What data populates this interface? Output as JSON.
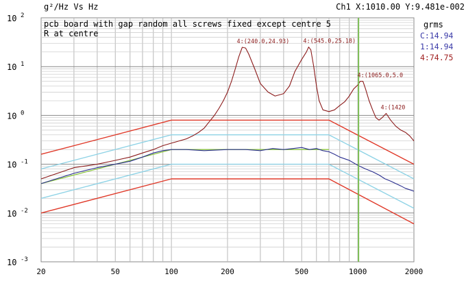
{
  "window": {
    "title": "g²/Hz Vs Hz",
    "cursor_readout": "Ch1 X:1010.00 Y:9.481e-002"
  },
  "annotation": {
    "line1": "pcb board with gap random all screws fixed except centre 5",
    "line2": "R at  centre"
  },
  "legend": {
    "header": "grms",
    "items": [
      {
        "label": "C:14.94",
        "color": "#3a3aa8"
      },
      {
        "label": "1:14.94",
        "color": "#3a3aa8"
      },
      {
        "label": "4:74.75",
        "color": "#a02020"
      }
    ]
  },
  "colors": {
    "response": "#8b1a1a",
    "control": "#2b2f8f",
    "reference": "#8cc63f",
    "abort_limits": "#e03a2a",
    "alarm_limits": "#8fd3e6",
    "cursor": "#6fbf3f",
    "grid": "#b8b8b8"
  },
  "chart_data": {
    "type": "line",
    "x_scale": "log",
    "y_scale": "log",
    "xlim": [
      20,
      2000
    ],
    "ylim": [
      0.001,
      100
    ],
    "x_ticks": [
      20,
      50,
      100,
      200,
      500,
      1000,
      2000
    ],
    "x_tick_labels": [
      "20",
      "50",
      "100",
      "200",
      "500",
      "1000",
      "2000"
    ],
    "y_ticks": [
      {
        "value": 100,
        "base": "10",
        "exp": "2"
      },
      {
        "value": 10,
        "base": "10",
        "exp": "1"
      },
      {
        "value": 1,
        "base": "10",
        "exp": "0"
      },
      {
        "value": 0.1,
        "base": "10",
        "exp": "-1"
      },
      {
        "value": 0.01,
        "base": "10",
        "exp": "-2"
      },
      {
        "value": 0.001,
        "base": "10",
        "exp": "-3"
      }
    ],
    "cursor_x": 1010,
    "peak_labels": [
      {
        "text": "4:(240.0,24.93)",
        "x": 240,
        "y": 24.93
      },
      {
        "text": "4:(545.0,25.18)",
        "x": 545,
        "y": 25.18
      },
      {
        "text": "4:(1065.0,5.0",
        "x": 1065,
        "y": 5.0
      },
      {
        "text": "4:(1420",
        "x": 1420,
        "y": 1.1
      }
    ],
    "series": [
      {
        "key": "abort_high",
        "color_key": "abort_limits",
        "x": [
          20,
          100,
          700,
          2000
        ],
        "y": [
          0.16,
          0.8,
          0.8,
          0.1
        ]
      },
      {
        "key": "abort_low",
        "color_key": "abort_limits",
        "x": [
          20,
          100,
          700,
          2000
        ],
        "y": [
          0.01,
          0.05,
          0.05,
          0.006
        ]
      },
      {
        "key": "alarm_high",
        "color_key": "alarm_limits",
        "x": [
          20,
          100,
          700,
          2000
        ],
        "y": [
          0.08,
          0.4,
          0.4,
          0.05
        ]
      },
      {
        "key": "alarm_low",
        "color_key": "alarm_limits",
        "x": [
          20,
          100,
          700,
          2000
        ],
        "y": [
          0.02,
          0.1,
          0.1,
          0.0125
        ]
      },
      {
        "key": "reference",
        "color_key": "reference",
        "x": [
          20,
          100,
          700
        ],
        "y": [
          0.04,
          0.2,
          0.2
        ]
      },
      {
        "key": "control",
        "color_key": "control",
        "x": [
          20,
          30,
          40,
          50,
          60,
          70,
          80,
          90,
          100,
          120,
          150,
          200,
          250,
          300,
          350,
          400,
          450,
          500,
          550,
          600,
          650,
          700,
          750,
          800,
          900,
          1000,
          1100,
          1200,
          1300,
          1400,
          1500,
          1600,
          1700,
          1800,
          1900,
          2000
        ],
        "y": [
          0.04,
          0.065,
          0.085,
          0.1,
          0.115,
          0.14,
          0.17,
          0.19,
          0.2,
          0.2,
          0.19,
          0.2,
          0.2,
          0.19,
          0.21,
          0.2,
          0.21,
          0.22,
          0.2,
          0.21,
          0.19,
          0.18,
          0.16,
          0.14,
          0.12,
          0.095,
          0.08,
          0.07,
          0.06,
          0.05,
          0.045,
          0.04,
          0.036,
          0.032,
          0.03,
          0.028
        ]
      },
      {
        "key": "response",
        "color_key": "response",
        "x": [
          20,
          30,
          40,
          50,
          60,
          70,
          80,
          90,
          100,
          110,
          120,
          130,
          140,
          150,
          160,
          170,
          180,
          190,
          200,
          210,
          220,
          230,
          240,
          250,
          260,
          280,
          300,
          330,
          360,
          400,
          430,
          460,
          500,
          530,
          545,
          560,
          580,
          600,
          620,
          650,
          700,
          750,
          800,
          850,
          900,
          950,
          1000,
          1030,
          1065,
          1100,
          1150,
          1200,
          1250,
          1300,
          1350,
          1420,
          1500,
          1600,
          1700,
          1800,
          1900,
          2000
        ],
        "y": [
          0.05,
          0.085,
          0.1,
          0.12,
          0.14,
          0.17,
          0.2,
          0.24,
          0.27,
          0.3,
          0.33,
          0.38,
          0.45,
          0.55,
          0.75,
          1.0,
          1.4,
          2.0,
          3.0,
          5.0,
          9.0,
          16.0,
          24.93,
          24.0,
          18.0,
          9.0,
          4.5,
          3.0,
          2.5,
          2.8,
          4.0,
          8.0,
          14.0,
          20.0,
          25.18,
          22.0,
          10.0,
          4.0,
          2.0,
          1.3,
          1.2,
          1.3,
          1.6,
          1.9,
          2.5,
          3.5,
          4.2,
          5.0,
          5.0,
          3.5,
          2.0,
          1.3,
          0.9,
          0.8,
          0.9,
          1.1,
          0.8,
          0.6,
          0.5,
          0.45,
          0.38,
          0.3
        ]
      }
    ]
  }
}
